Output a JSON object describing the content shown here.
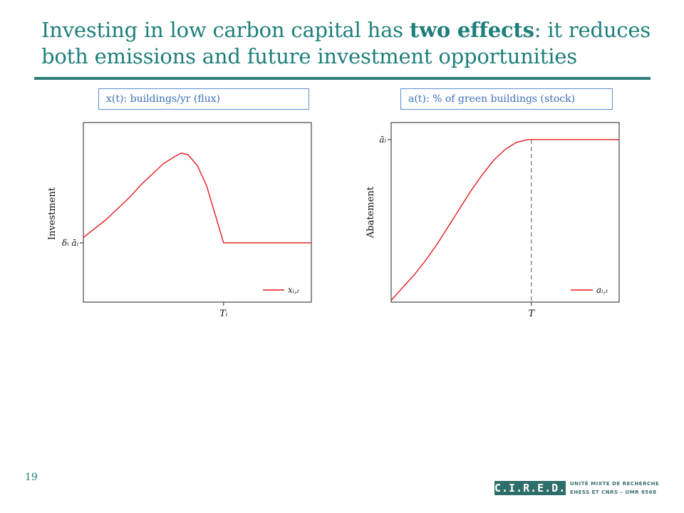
{
  "slide": {
    "title_part1": "Investing in low carbon capital has ",
    "title_bold": "two effects",
    "title_part2": ": it reduces both emissions and future investment opportunities",
    "page_number": "19",
    "logo_text": "C.I.R.E.D.",
    "logo_sub1": "UNITÉ MIXTE DE RECHERCHE",
    "logo_sub2": "EHESS ET CNRS – UMR 8568"
  },
  "colors": {
    "title": "#1e7f7a",
    "series": "#e31a1c",
    "label_border": "#5b8fd4"
  },
  "chart_data": [
    {
      "type": "line",
      "panel_label": "x(t): buildings/yr (flux)",
      "ylabel": "Investment",
      "y_tick_label": "δᵢ āᵢ",
      "x_tick_label": "Tᵢ",
      "legend": "xᵢ,ₜ",
      "legend_position": "bottom-right",
      "grid": false,
      "xlim": [
        0,
        1
      ],
      "ylim": [
        0,
        1
      ],
      "series": [
        {
          "name": "xᵢ,ₜ",
          "x": [
            0,
            0.05,
            0.1,
            0.15,
            0.2,
            0.25,
            0.3,
            0.35,
            0.4,
            0.43,
            0.46,
            0.5,
            0.54,
            0.58,
            0.615,
            0.65,
            0.7,
            0.8,
            0.9,
            1.0
          ],
          "y": [
            0.36,
            0.41,
            0.46,
            0.52,
            0.58,
            0.65,
            0.71,
            0.77,
            0.81,
            0.83,
            0.82,
            0.76,
            0.65,
            0.48,
            0.33,
            0.33,
            0.33,
            0.33,
            0.33,
            0.33
          ]
        }
      ],
      "annotations": {
        "x_tick": 0.615,
        "y_tick": 0.33
      }
    },
    {
      "type": "line",
      "panel_label": "a(t): % of green buildings (stock)",
      "ylabel": "Abatement",
      "y_tick_label": "āᵢ",
      "x_tick_label": "T",
      "legend": "aᵢ,ₜ",
      "legend_position": "bottom-right",
      "grid": false,
      "xlim": [
        0,
        1
      ],
      "ylim": [
        0,
        1
      ],
      "series": [
        {
          "name": "aᵢ,ₜ",
          "x": [
            0,
            0.05,
            0.1,
            0.15,
            0.2,
            0.25,
            0.3,
            0.35,
            0.4,
            0.45,
            0.5,
            0.55,
            0.6,
            0.615,
            0.7,
            0.8,
            0.9,
            1.0
          ],
          "y": [
            0.01,
            0.08,
            0.15,
            0.23,
            0.32,
            0.42,
            0.52,
            0.62,
            0.71,
            0.79,
            0.85,
            0.89,
            0.905,
            0.905,
            0.905,
            0.905,
            0.905,
            0.905
          ]
        }
      ],
      "annotations": {
        "x_tick": 0.615,
        "y_tick": 0.905,
        "dashed_vertical_at": 0.615
      }
    }
  ]
}
